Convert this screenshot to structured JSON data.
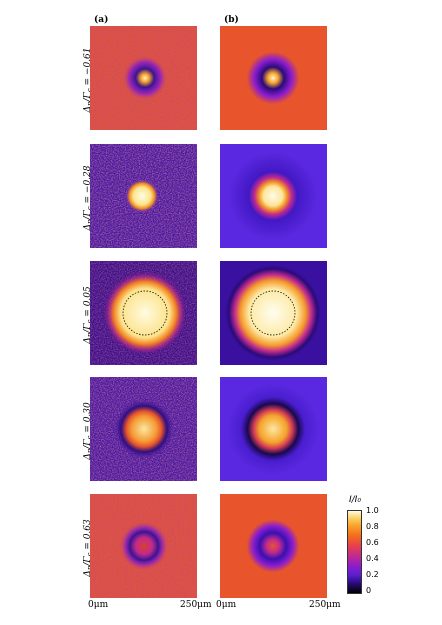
{
  "panels": {
    "a": "(a)",
    "b": "(b)"
  },
  "rows": [
    {
      "label": "Δ",
      "sub": "p",
      "rest": "/Γ",
      "sub2": "c",
      "value": " = −0.61",
      "ring": "dark-spot-small"
    },
    {
      "label": "Δ",
      "sub": "p",
      "rest": "/Γ",
      "sub2": "c",
      "value": " = −0.28",
      "ring": "bright-spot"
    },
    {
      "label": "Δ",
      "sub": "p",
      "rest": "/Γ",
      "sub2": "c",
      "value": " = 0.05",
      "ring": "bright-large"
    },
    {
      "label": "Δ",
      "sub": "p",
      "rest": "/Γ",
      "sub2": "c",
      "value": " = 0.30",
      "ring": "bright-ring"
    },
    {
      "label": "Δ",
      "sub": "p",
      "rest": "/Γ",
      "sub2": "c",
      "value": " = 0.63",
      "ring": "dark-ring"
    }
  ],
  "axis": {
    "left_a": "0μm",
    "right_a": "250μm",
    "left_b": "0μm",
    "right_b": "250μm"
  },
  "colorbar": {
    "title": "I/I₀",
    "ticks": [
      "1.0",
      "0.8",
      "0.6",
      "0.4",
      "0.2",
      "0"
    ]
  }
}
